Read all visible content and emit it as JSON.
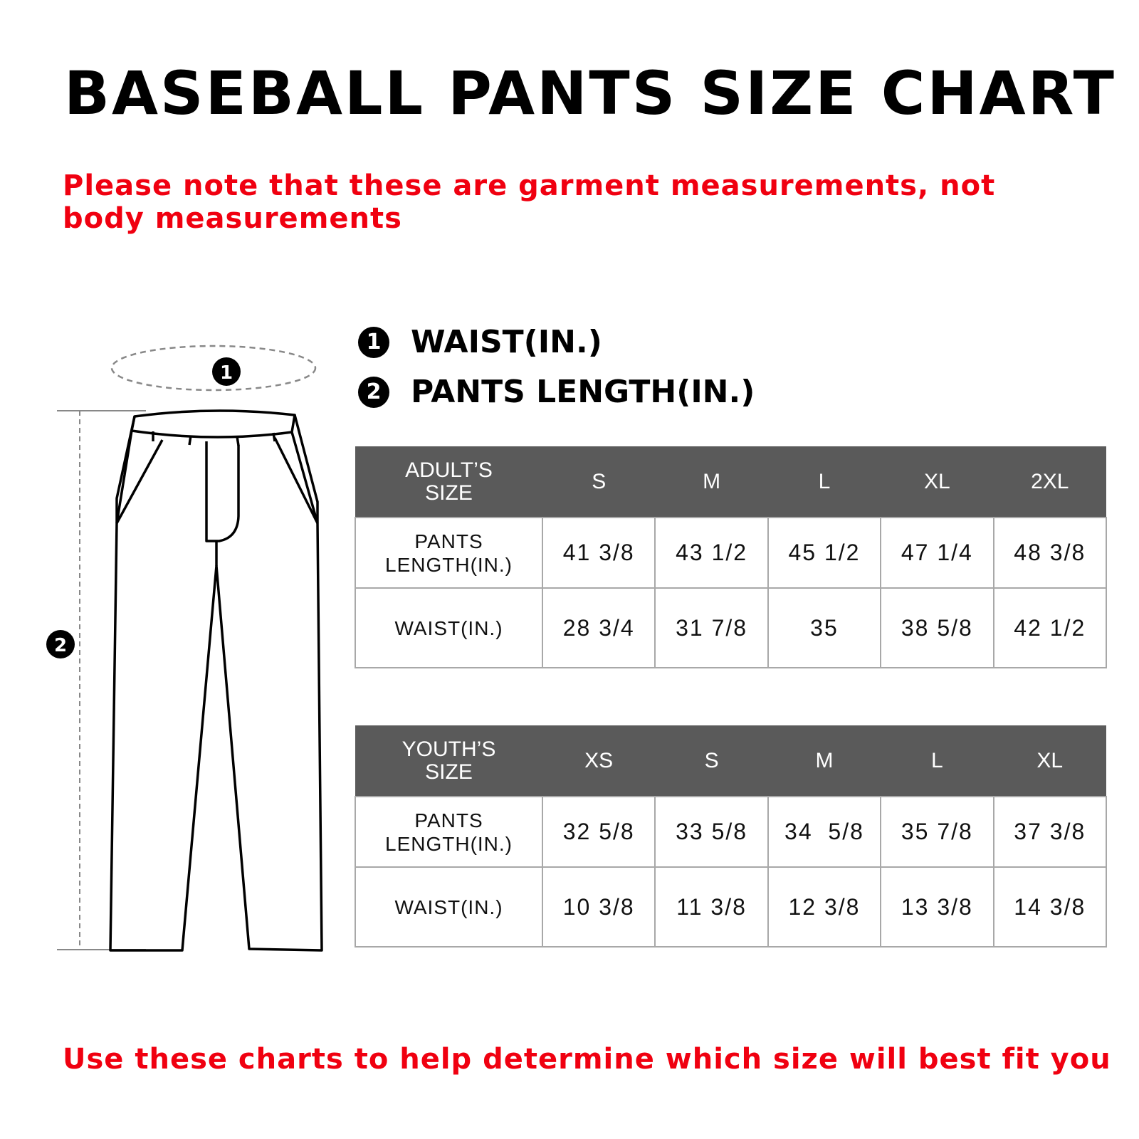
{
  "title": "BASEBALL PANTS SIZE CHART",
  "note": "Please note that these are garment measurements, not body measurements",
  "legend": [
    {
      "num": "1",
      "label": "WAIST(IN.)"
    },
    {
      "num": "2",
      "label": "PANTS LENGTH(IN.)"
    }
  ],
  "adult": {
    "header": [
      "ADULT’S SIZE",
      "S",
      "M",
      "L",
      "XL",
      "2XL"
    ],
    "rows": [
      {
        "label": "PANTS LENGTH(IN.)",
        "values": [
          "41 3/8",
          "43 1/2",
          "45 1/2",
          "47 1/4",
          "48 3/8"
        ]
      },
      {
        "label": "WAIST(IN.)",
        "values": [
          "28 3/4",
          "31 7/8",
          "35",
          "38 5/8",
          "42 1/2"
        ]
      }
    ]
  },
  "youth": {
    "header": [
      "YOUTH’S SIZE",
      "XS",
      "S",
      "M",
      "L",
      "XL"
    ],
    "rows": [
      {
        "label": "PANTS LENGTH(IN.)",
        "values": [
          "32 5/8",
          "33 5/8",
          "34  5/8",
          "35 7/8",
          "37 3/8"
        ]
      },
      {
        "label": "WAIST(IN.)",
        "values": [
          "10 3/8",
          "11 3/8",
          "12 3/8",
          "13 3/8",
          "14 3/8"
        ]
      }
    ]
  },
  "diagram": {
    "marker1": "1",
    "marker2": "2"
  },
  "footer": "Use these charts to help determine which size will best fit you",
  "colors": {
    "accent": "#f00010",
    "header_bg": "#5a5a5a"
  }
}
